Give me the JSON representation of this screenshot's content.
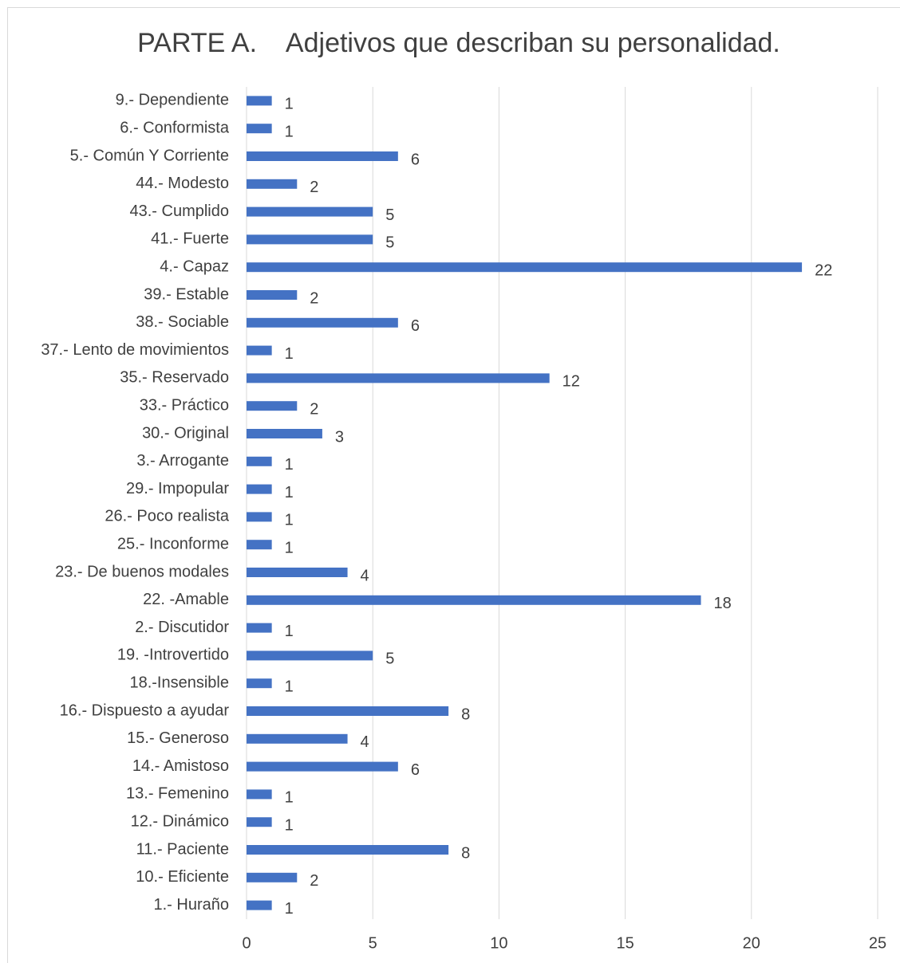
{
  "chart_data": {
    "type": "barh",
    "title": "PARTE A.    Adjetivos que describan su personalidad.",
    "categories": [
      "9.- Dependiente",
      "6.- Conformista",
      "5.- Común Y Corriente",
      "44.- Modesto",
      "43.- Cumplido",
      "41.- Fuerte",
      "4.- Capaz",
      "39.- Estable",
      "38.- Sociable",
      "37.- Lento de movimientos",
      "35.- Reservado",
      "33.- Práctico",
      "30.- Original",
      "3.- Arrogante",
      "29.- Impopular",
      "26.- Poco realista",
      "25.- Inconforme",
      "23.- De buenos modales",
      "22. -Amable",
      "2.- Discutidor",
      "19. -Introvertido",
      "18.-Insensible",
      "16.- Dispuesto a ayudar",
      "15.- Generoso",
      "14.- Amistoso",
      "13.- Femenino",
      "12.- Dinámico",
      "11.- Paciente",
      "10.- Eficiente",
      "1.- Huraño"
    ],
    "values": [
      1,
      1,
      6,
      2,
      5,
      5,
      22,
      2,
      6,
      1,
      12,
      2,
      3,
      1,
      1,
      1,
      1,
      4,
      18,
      1,
      5,
      1,
      8,
      4,
      6,
      1,
      1,
      8,
      2,
      1
    ],
    "color": "#4472c4",
    "xlim": [
      0,
      25
    ],
    "xticks": [
      0,
      5,
      10,
      15,
      20,
      25
    ],
    "grid": true
  }
}
